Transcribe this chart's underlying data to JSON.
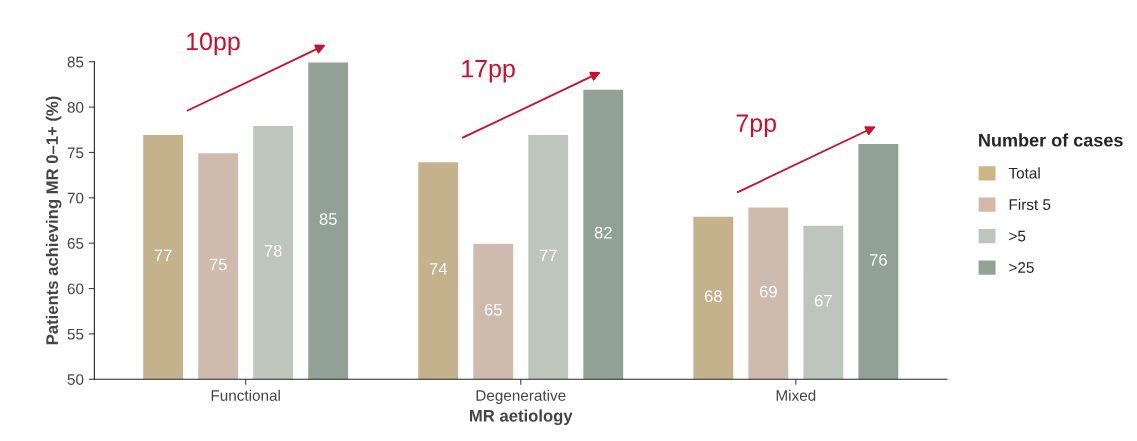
{
  "chart_data": {
    "type": "bar",
    "xlabel": "MR aetiology",
    "ylabel": "Patients achieving MR 0–1+ (%)",
    "legend_title": "Number of cases",
    "categories": [
      "Functional",
      "Degenerative",
      "Mixed"
    ],
    "series": [
      {
        "name": "Total",
        "color": "#cdb683",
        "values": [
          77,
          74,
          68
        ]
      },
      {
        "name": "First 5",
        "color": "#d5b8a8",
        "values": [
          75,
          65,
          69
        ]
      },
      {
        "name": ">5",
        "color": "#bcc6bc",
        "values": [
          78,
          77,
          67
        ]
      },
      {
        "name": ">25",
        "color": "#90a394",
        "values": [
          85,
          82,
          76
        ]
      }
    ],
    "ylim": [
      50,
      85
    ],
    "yticks": [
      50,
      55,
      60,
      65,
      70,
      75,
      80,
      85
    ],
    "data_labels": true,
    "grid": false,
    "legend": "right",
    "annotations": [
      "10pp",
      "17pp",
      "7pp"
    ]
  }
}
